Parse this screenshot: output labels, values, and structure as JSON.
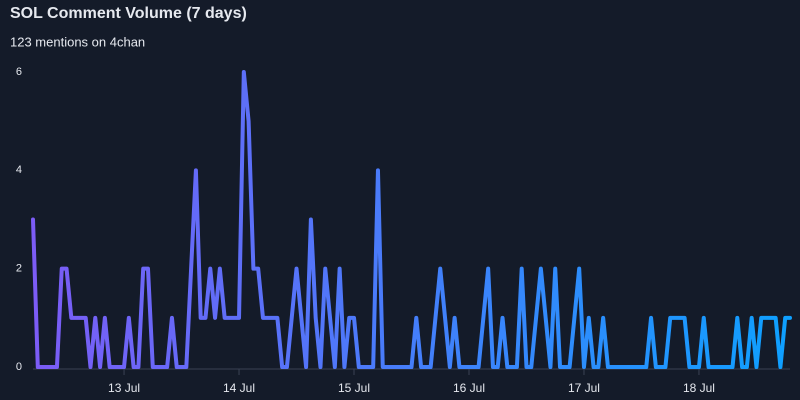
{
  "chart_data": {
    "type": "line",
    "title": "SOL Comment Volume (7 days)",
    "subtitle": "123 mentions on 4chan",
    "categories": [
      null,
      null,
      null,
      null,
      null,
      null,
      null,
      null,
      null,
      null,
      null,
      null,
      null,
      null,
      null,
      null,
      null,
      null,
      null,
      "13 Jul",
      null,
      null,
      null,
      null,
      null,
      null,
      null,
      null,
      null,
      null,
      null,
      null,
      null,
      null,
      null,
      null,
      null,
      null,
      null,
      null,
      null,
      null,
      null,
      "14 Jul",
      null,
      null,
      null,
      null,
      null,
      null,
      null,
      null,
      null,
      null,
      null,
      null,
      null,
      null,
      null,
      null,
      null,
      null,
      null,
      null,
      null,
      null,
      null,
      "15 Jul",
      null,
      null,
      null,
      null,
      null,
      null,
      null,
      null,
      null,
      null,
      null,
      null,
      null,
      null,
      null,
      null,
      null,
      null,
      null,
      null,
      null,
      null,
      null,
      "16 Jul",
      null,
      null,
      null,
      null,
      null,
      null,
      null,
      null,
      null,
      null,
      null,
      null,
      null,
      null,
      null,
      null,
      null,
      null,
      null,
      null,
      null,
      null,
      null,
      "17 Jul",
      null,
      null,
      null,
      null,
      null,
      null,
      null,
      null,
      null,
      null,
      null,
      null,
      null,
      null,
      null,
      null,
      null,
      null,
      null,
      null,
      null,
      null,
      null,
      "18 Jul",
      null,
      null,
      null,
      null,
      null,
      null,
      null,
      null,
      null,
      null,
      null,
      null,
      null,
      null,
      null,
      null,
      null,
      null,
      null
    ],
    "values": [
      3,
      0,
      0,
      0,
      0,
      0,
      2,
      2,
      1,
      1,
      1,
      1,
      0,
      1,
      0,
      1,
      0,
      0,
      0,
      0,
      1,
      0,
      0,
      2,
      2,
      0,
      0,
      0,
      0,
      1,
      0,
      0,
      0,
      2,
      4,
      1,
      1,
      2,
      1,
      2,
      1,
      1,
      1,
      1,
      6,
      5,
      2,
      2,
      1,
      1,
      1,
      1,
      0,
      0,
      1,
      2,
      1,
      0,
      3,
      1,
      0,
      2,
      1,
      0,
      2,
      0,
      1,
      1,
      0,
      0,
      0,
      0,
      4,
      0,
      0,
      0,
      0,
      0,
      0,
      0,
      1,
      0,
      0,
      0,
      1,
      2,
      1,
      0,
      1,
      0,
      0,
      0,
      0,
      0,
      1,
      2,
      0,
      0,
      1,
      0,
      0,
      0,
      2,
      0,
      0,
      1,
      2,
      1,
      0,
      2,
      0,
      0,
      0,
      1,
      2,
      0,
      1,
      0,
      0,
      1,
      0,
      0,
      0,
      0,
      0,
      0,
      0,
      0,
      0,
      1,
      0,
      0,
      0,
      1,
      1,
      1,
      1,
      0,
      0,
      0,
      1,
      0,
      0,
      0,
      0,
      0,
      0,
      1,
      0,
      0,
      1,
      0,
      1,
      1,
      1,
      1,
      0,
      1,
      1
    ],
    "color_gradient": [
      "#7c5cf6",
      "#0ea0ff"
    ],
    "ylim": [
      0,
      6
    ],
    "yticks": [
      0,
      2,
      4,
      6
    ]
  }
}
